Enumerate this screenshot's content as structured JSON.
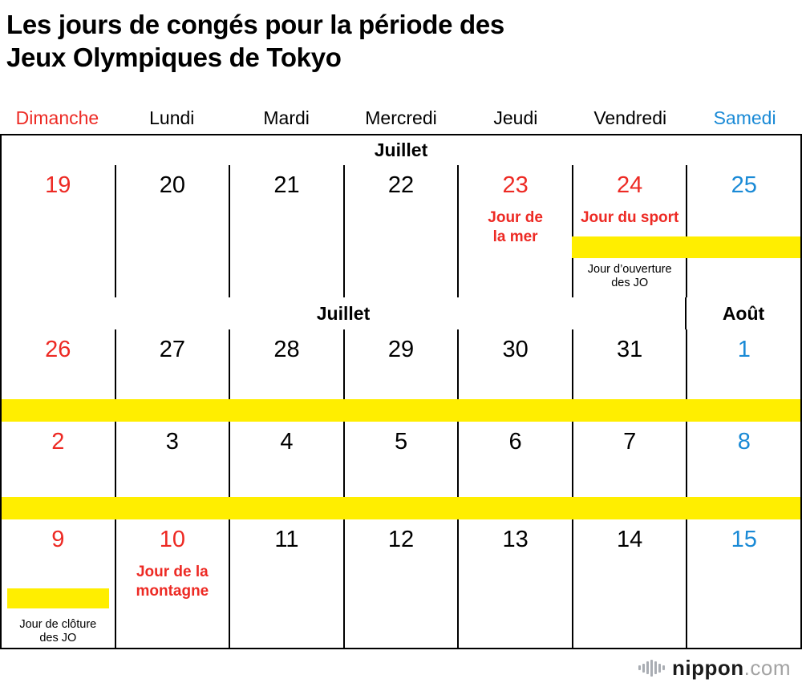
{
  "title": {
    "line1": "Les jours de congés pour la période des",
    "line2": "Jeux Olympiques de Tokyo"
  },
  "day_headers": [
    {
      "label": "Dimanche",
      "type": "sunday"
    },
    {
      "label": "Lundi",
      "type": "weekday"
    },
    {
      "label": "Mardi",
      "type": "weekday"
    },
    {
      "label": "Mercredi",
      "type": "weekday"
    },
    {
      "label": "Jeudi",
      "type": "weekday"
    },
    {
      "label": "Vendredi",
      "type": "weekday"
    },
    {
      "label": "Samedi",
      "type": "saturday"
    }
  ],
  "month_headers": {
    "week1": "Juillet",
    "week2_left": "Juillet",
    "week2_right": "Août"
  },
  "weeks": [
    {
      "cells": [
        {
          "day": "19",
          "type": "sunday"
        },
        {
          "day": "20",
          "type": "weekday"
        },
        {
          "day": "21",
          "type": "weekday"
        },
        {
          "day": "22",
          "type": "weekday"
        },
        {
          "day": "23",
          "type": "holiday",
          "holiday": "Jour de la mer"
        },
        {
          "day": "24",
          "type": "holiday",
          "holiday": "Jour du sport",
          "note": "Jour d’ouverture des JO"
        },
        {
          "day": "25",
          "type": "saturday"
        }
      ]
    },
    {
      "cells": [
        {
          "day": "26",
          "type": "sunday"
        },
        {
          "day": "27",
          "type": "weekday"
        },
        {
          "day": "28",
          "type": "weekday"
        },
        {
          "day": "29",
          "type": "weekday"
        },
        {
          "day": "30",
          "type": "weekday"
        },
        {
          "day": "31",
          "type": "weekday"
        },
        {
          "day": "1",
          "type": "saturday"
        }
      ]
    },
    {
      "cells": [
        {
          "day": "2",
          "type": "sunday"
        },
        {
          "day": "3",
          "type": "weekday"
        },
        {
          "day": "4",
          "type": "weekday"
        },
        {
          "day": "5",
          "type": "weekday"
        },
        {
          "day": "6",
          "type": "weekday"
        },
        {
          "day": "7",
          "type": "weekday"
        },
        {
          "day": "8",
          "type": "saturday"
        }
      ]
    },
    {
      "cells": [
        {
          "day": "9",
          "type": "sunday",
          "note": "Jour de clôture des JO"
        },
        {
          "day": "10",
          "type": "holiday",
          "holiday": "Jour de la montagne"
        },
        {
          "day": "11",
          "type": "weekday"
        },
        {
          "day": "12",
          "type": "weekday"
        },
        {
          "day": "13",
          "type": "weekday"
        },
        {
          "day": "14",
          "type": "weekday"
        },
        {
          "day": "15",
          "type": "saturday"
        }
      ]
    }
  ],
  "colors": {
    "sunday_red": "#ed2a24",
    "saturday_blue": "#1a8ad6",
    "pink_bg": "#fbd4d9",
    "blue_bg": "#bedff5",
    "highlight_yellow": "#ffee00",
    "border_black": "#000000"
  },
  "footer": {
    "brand": "nippon",
    "brand_suffix": ".com"
  }
}
